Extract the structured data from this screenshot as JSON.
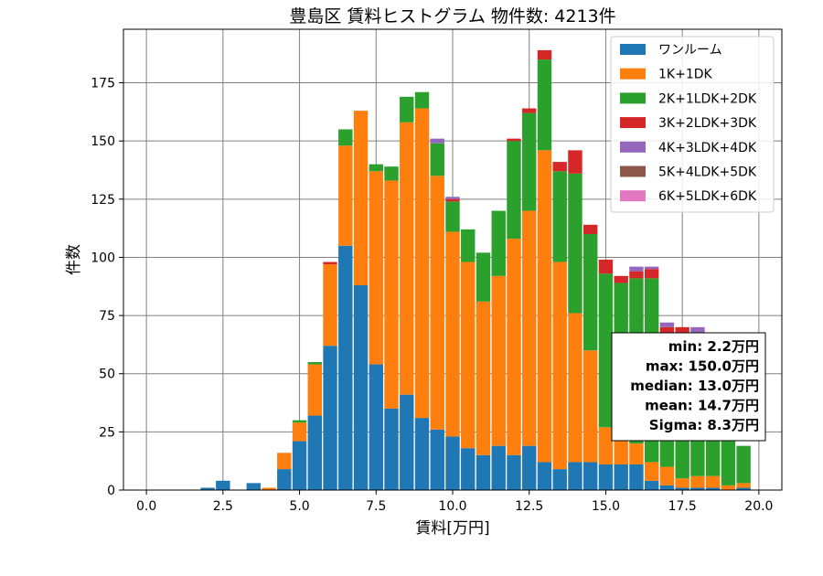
{
  "chart_data": {
    "type": "bar",
    "stacked": true,
    "title": "豊島区 賃料ヒストグラム 物件数: 4213件",
    "xlabel": "賃料[万円]",
    "ylabel": "件数",
    "xlim": [
      -0.75,
      20.75
    ],
    "ylim": [
      0,
      198
    ],
    "xticks": [
      0.0,
      2.5,
      5.0,
      7.5,
      10.0,
      12.5,
      15.0,
      17.5,
      20.0
    ],
    "xtick_labels": [
      "0.0",
      "2.5",
      "5.0",
      "7.5",
      "10.0",
      "12.5",
      "15.0",
      "17.5",
      "20.0"
    ],
    "yticks": [
      0,
      25,
      50,
      75,
      100,
      125,
      150,
      175
    ],
    "ytick_labels": [
      "0",
      "25",
      "50",
      "75",
      "100",
      "125",
      "150",
      "175"
    ],
    "grid": true,
    "legend_position": "top-right",
    "bin_width": 0.5,
    "x": [
      0.0,
      0.5,
      1.0,
      1.5,
      2.0,
      2.5,
      3.0,
      3.5,
      4.0,
      4.5,
      5.0,
      5.5,
      6.0,
      6.5,
      7.0,
      7.5,
      8.0,
      8.5,
      9.0,
      9.5,
      10.0,
      10.5,
      11.0,
      11.5,
      12.0,
      12.5,
      13.0,
      13.5,
      14.0,
      14.5,
      15.0,
      15.5,
      16.0,
      16.5,
      17.0,
      17.5,
      18.0,
      18.5,
      19.0,
      19.5
    ],
    "series": [
      {
        "name": "ワンルーム",
        "color": "#1f77b4",
        "values": [
          0,
          0,
          0,
          0,
          1,
          4,
          0,
          3,
          0,
          9,
          21,
          32,
          62,
          105,
          88,
          54,
          35,
          41,
          31,
          26,
          23,
          18,
          15,
          19,
          15,
          19,
          12,
          9,
          12,
          12,
          11,
          11,
          11,
          4,
          2,
          1,
          1,
          1,
          0,
          1
        ]
      },
      {
        "name": "1K+1DK",
        "color": "#ff7f0e",
        "values": [
          0,
          0,
          0,
          0,
          0,
          0,
          0,
          0,
          1,
          7,
          8,
          22,
          35,
          43,
          75,
          83,
          98,
          117,
          133,
          109,
          88,
          80,
          66,
          73,
          93,
          101,
          134,
          89,
          64,
          48,
          16,
          11,
          9,
          8,
          8,
          4,
          5,
          5,
          2,
          2
        ]
      },
      {
        "name": "2K+1LDK+2DK",
        "color": "#2ca02c",
        "values": [
          0,
          0,
          0,
          0,
          0,
          0,
          0,
          0,
          0,
          0,
          1,
          1,
          0,
          7,
          0,
          3,
          6,
          11,
          7,
          14,
          13,
          14,
          21,
          28,
          42,
          42,
          39,
          39,
          60,
          50,
          66,
          67,
          71,
          79,
          56,
          62,
          58,
          56,
          58,
          16
        ]
      },
      {
        "name": "3K+2LDK+3DK",
        "color": "#d62728",
        "values": [
          0,
          0,
          0,
          0,
          0,
          0,
          0,
          0,
          0,
          0,
          0,
          0,
          1,
          0,
          0,
          0,
          0,
          0,
          0,
          0,
          1,
          0,
          0,
          0,
          1,
          2,
          4,
          4,
          10,
          4,
          6,
          3,
          3,
          4,
          4,
          3,
          2,
          2,
          0,
          0
        ]
      },
      {
        "name": "4K+3LDK+4DK",
        "color": "#9467bd",
        "values": [
          0,
          0,
          0,
          0,
          0,
          0,
          0,
          0,
          0,
          0,
          0,
          0,
          0,
          0,
          0,
          0,
          0,
          0,
          0,
          2,
          1,
          0,
          0,
          0,
          0,
          0,
          0,
          0,
          0,
          0,
          0,
          0,
          2,
          1,
          2,
          0,
          4,
          1,
          0,
          0
        ]
      },
      {
        "name": "5K+4LDK+5DK",
        "color": "#8c564b",
        "values": [
          0,
          0,
          0,
          0,
          0,
          0,
          0,
          0,
          0,
          0,
          0,
          0,
          0,
          0,
          0,
          0,
          0,
          0,
          0,
          0,
          0,
          0,
          0,
          0,
          0,
          0,
          0,
          0,
          0,
          0,
          0,
          0,
          0,
          0,
          0,
          0,
          0,
          0,
          0,
          0
        ]
      },
      {
        "name": "6K+5LDK+6DK",
        "color": "#e377c2",
        "values": [
          0,
          0,
          0,
          0,
          0,
          0,
          0,
          0,
          0,
          0,
          0,
          0,
          0,
          0,
          0,
          0,
          0,
          0,
          0,
          0,
          0,
          0,
          0,
          0,
          0,
          0,
          0,
          0,
          0,
          0,
          0,
          0,
          0,
          0,
          0,
          0,
          0,
          0,
          0,
          0
        ]
      }
    ],
    "annotation": {
      "lines": [
        "min: 2.2万円",
        "max: 150.0万円",
        "median: 13.0万円",
        "mean: 14.7万円",
        "Sigma: 8.3万円"
      ]
    }
  }
}
